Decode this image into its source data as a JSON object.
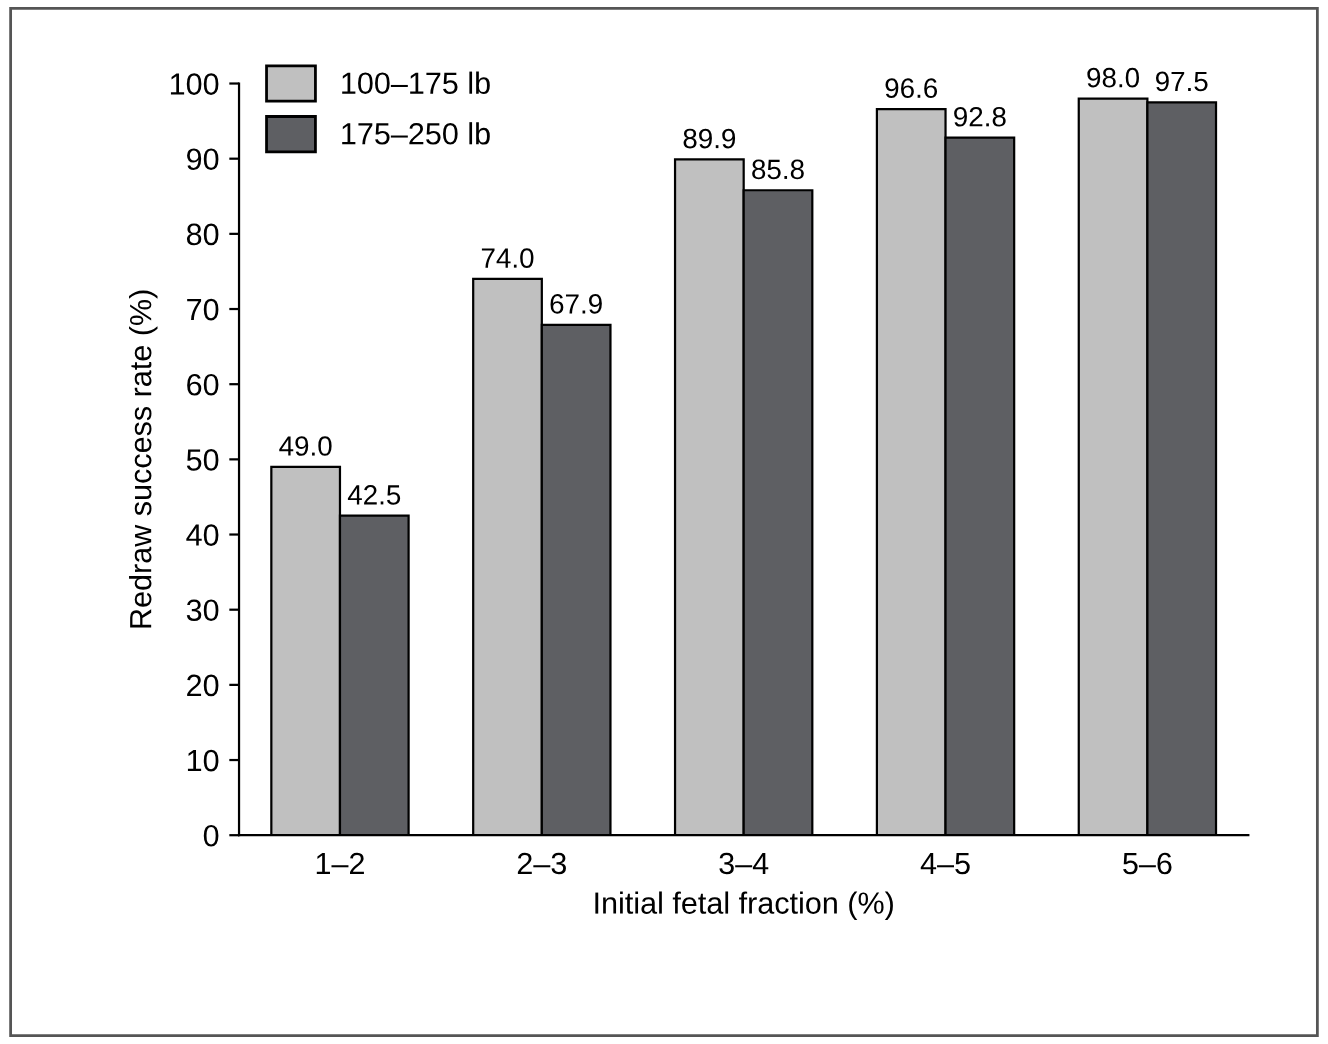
{
  "chart_data": {
    "type": "bar",
    "xlabel": "Initial fetal fraction (%)",
    "ylabel": "Redraw success rate (%)",
    "categories": [
      "1–2",
      "2–3",
      "3–4",
      "4–5",
      "5–6"
    ],
    "series": [
      {
        "name": "100–175 lb",
        "color": "#c0c0c0",
        "values": [
          49.0,
          74.0,
          89.9,
          96.6,
          98.0
        ]
      },
      {
        "name": "175–250 lb",
        "color": "#5e5f63",
        "values": [
          42.5,
          67.9,
          85.8,
          92.8,
          97.5
        ]
      }
    ],
    "value_labels": [
      [
        "49.0",
        "74.0",
        "89.9",
        "96.6",
        "98.0"
      ],
      [
        "42.5",
        "67.9",
        "85.8",
        "92.8",
        "97.5"
      ]
    ],
    "ylim": [
      0,
      100
    ],
    "yticks": [
      0,
      10,
      20,
      30,
      40,
      50,
      60,
      70,
      80,
      90,
      100
    ],
    "legend": "top left",
    "grid": false
  }
}
